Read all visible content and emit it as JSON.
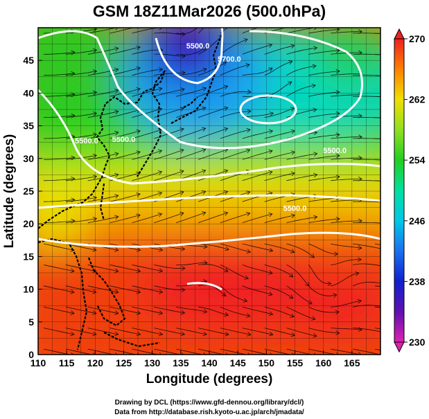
{
  "title": "GSM 18Z11Mar2026 (500.0hPa)",
  "xlabel": "Longitude (degrees)",
  "ylabel": "Latitude  (degrees)",
  "credits": [
    "Drawing by DCL (https://www.gfd-dennou.org/library/dcl/)",
    "Data from http://database.rish.kyoto-u.ac.jp/arch/jmadata/"
  ],
  "map": {
    "xlim": [
      110,
      170
    ],
    "ylim": [
      0,
      50
    ],
    "x_ticks": [
      110,
      115,
      120,
      125,
      130,
      135,
      140,
      145,
      150,
      155,
      160,
      165
    ],
    "y_ticks": [
      0,
      5,
      10,
      15,
      20,
      25,
      30,
      35,
      40,
      45
    ],
    "grid": true,
    "shaded_field_range": [
      230,
      270
    ],
    "contour_labels": [
      {
        "text": "5500.0",
        "lon": 138.0,
        "lat": 46.8
      },
      {
        "text": "5700.0",
        "lon": 143.5,
        "lat": 44.8
      },
      {
        "text": "5500.0",
        "lon": 125.0,
        "lat": 32.5
      },
      {
        "text": "5500.0",
        "lon": 118.5,
        "lat": 32.3
      },
      {
        "text": "5500.0",
        "lon": 162.0,
        "lat": 30.8
      },
      {
        "text": "5500.0",
        "lon": 155.0,
        "lat": 22.0
      }
    ]
  },
  "colorbar": {
    "min": 230,
    "max": 270,
    "ticks": [
      270,
      262,
      254,
      246,
      238,
      230
    ],
    "stops": [
      {
        "value": 230,
        "color": "#e020b0"
      },
      {
        "value": 234,
        "color": "#6010b0"
      },
      {
        "value": 238,
        "color": "#1020d0"
      },
      {
        "value": 242,
        "color": "#1a70f0"
      },
      {
        "value": 246,
        "color": "#00c8e8"
      },
      {
        "value": 250,
        "color": "#00e0a0"
      },
      {
        "value": 254,
        "color": "#20d020"
      },
      {
        "value": 258,
        "color": "#90e020"
      },
      {
        "value": 262,
        "color": "#f0e000"
      },
      {
        "value": 266,
        "color": "#ff8000"
      },
      {
        "value": 270,
        "color": "#ee2020"
      }
    ]
  }
}
